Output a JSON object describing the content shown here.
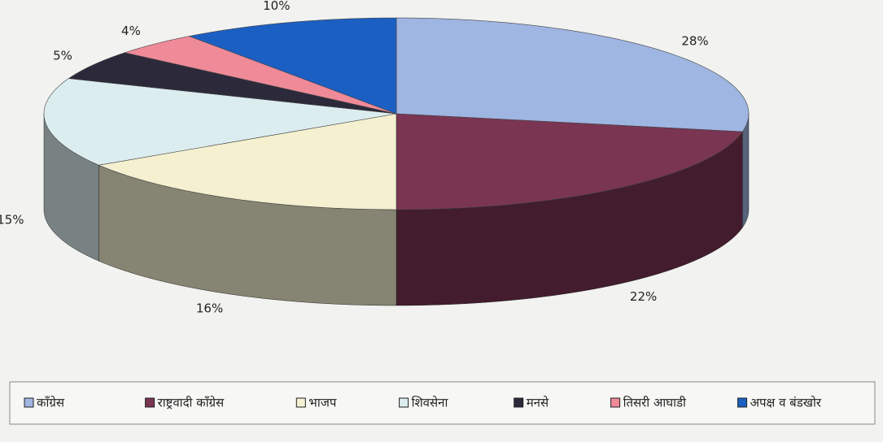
{
  "chart_data": {
    "type": "pie",
    "categories": [
      "काँग्रेस",
      "राष्ट्रवादी काँग्रेस",
      "भाजप",
      "शिवसेना",
      "मनसे",
      "तिसरी आघाडी",
      "अपक्ष व बंडखोर"
    ],
    "values": [
      28,
      22,
      16,
      15,
      5,
      4,
      10
    ],
    "value_labels": [
      "28%",
      "22%",
      "16%",
      "15%",
      "5%",
      "4%",
      "10%"
    ],
    "colors": [
      "#9fb5e2",
      "#7a3553",
      "#f4f0d0",
      "#dcedef",
      "#2c2a3a",
      "#ef8a98",
      "#1c5fc2"
    ],
    "legend": "bottom"
  }
}
